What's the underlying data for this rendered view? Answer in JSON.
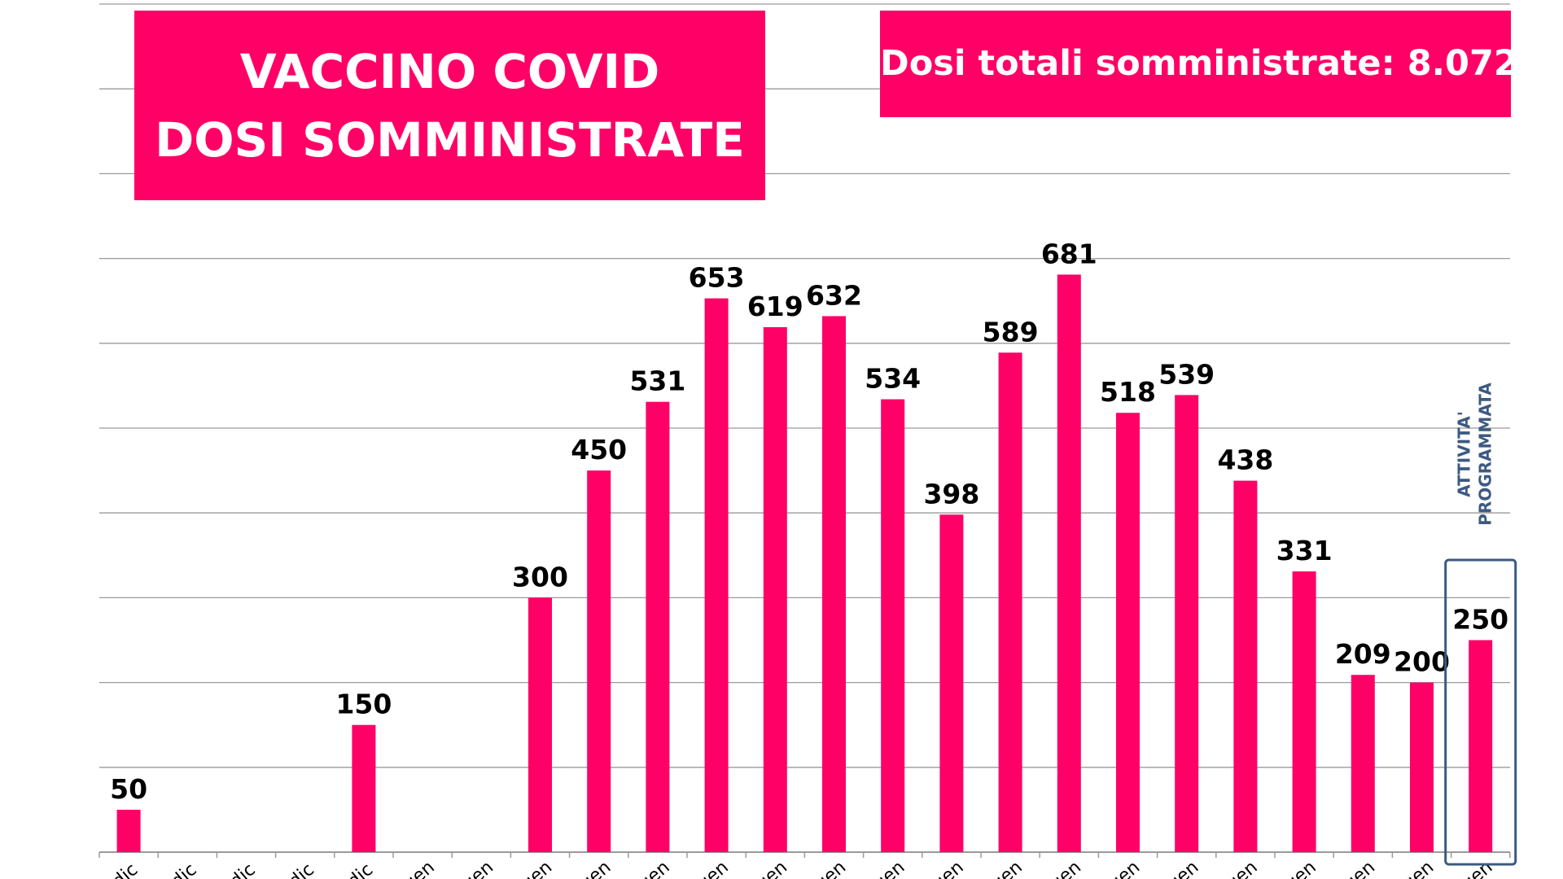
{
  "colors": {
    "bar": "#ff0066",
    "grid": "#9a9a9a",
    "highlight": "#3c5a82",
    "label": "#000000"
  },
  "title_box": {
    "line1": "VACCINO COVID",
    "line2": "DOSI SOMMINISTRATE"
  },
  "total_box": {
    "label": "Dosi totali somministrate:",
    "value": "8.072"
  },
  "annotation": {
    "line1": "ATTIVITA'",
    "line2": "PROGRAMMATA"
  },
  "chart_data": {
    "type": "bar",
    "title": "VACCINO COVID DOSI SOMMINISTRATE",
    "categories": [
      "dic",
      "dic",
      "dic",
      "dic",
      "dic",
      "gen",
      "gen",
      "gen",
      "gen",
      "gen",
      "gen",
      "gen",
      "gen",
      "gen",
      "gen",
      "gen",
      "gen",
      "gen",
      "gen",
      "gen",
      "gen",
      "gen",
      "gen",
      "gen"
    ],
    "values": [
      50,
      null,
      null,
      null,
      150,
      null,
      null,
      300,
      450,
      531,
      653,
      619,
      632,
      534,
      398,
      589,
      681,
      518,
      539,
      438,
      331,
      209,
      200,
      250
    ],
    "data_labels": [
      "50",
      "",
      "",
      "",
      "150",
      "",
      "",
      "300",
      "450",
      "531",
      "653",
      "619",
      "632",
      "534",
      "398",
      "589",
      "681",
      "518",
      "539",
      "438",
      "331",
      "209",
      "200",
      "250"
    ],
    "ylim": [
      0,
      1000
    ],
    "grid": true,
    "highlighted_index": 23,
    "xlabel": "",
    "ylabel": ""
  }
}
